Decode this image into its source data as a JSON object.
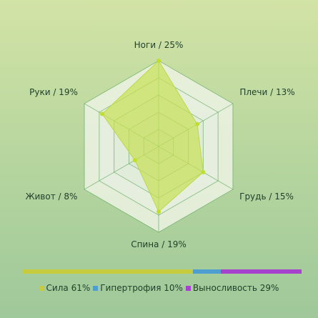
{
  "chart_data": {
    "type": "radar",
    "categories": [
      "Ноги / 25%",
      "Плечи / 13%",
      "Грудь / 15%",
      "Спина / 19%",
      "Живот / 8%",
      "Руки / 19%"
    ],
    "values": [
      25,
      13,
      15,
      19,
      8,
      19
    ],
    "rmax": 25,
    "rings": 5,
    "fill_color": "#c8e157",
    "point_color": "#c1de2e",
    "grid_color": "#4fa14f",
    "breakdown": [
      {
        "label": "Сила 61%",
        "value": 61,
        "color": "#c6cc3c"
      },
      {
        "label": "Гипертрофия 10%",
        "value": 10,
        "color": "#4e9fcf"
      },
      {
        "label": "Выносливость 29%",
        "value": 29,
        "color": "#a543cf"
      }
    ]
  }
}
